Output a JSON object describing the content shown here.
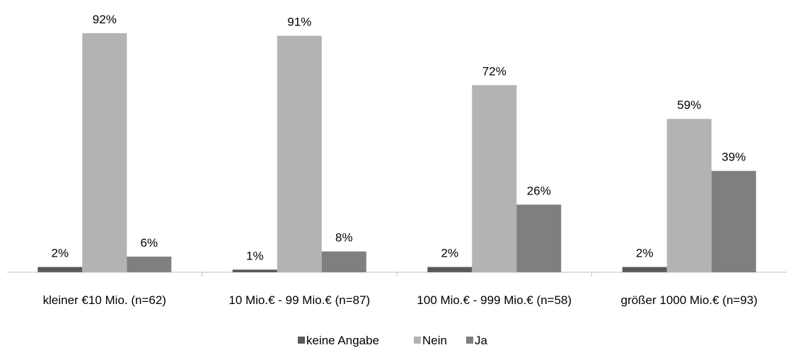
{
  "chart_data": {
    "type": "bar",
    "categories": [
      "kleiner €10 Mio. (n=62)",
      "10 Mio.€  - 99 Mio.€ (n=87)",
      "100 Mio.€ - 999 Mio.€ (n=58)",
      "größer 1000 Mio.€ (n=93)"
    ],
    "series": [
      {
        "name": "keine Angabe",
        "color": "#595959",
        "values": [
          2,
          1,
          2,
          2
        ],
        "labels": [
          "2%",
          "1%",
          "2%",
          "2%"
        ]
      },
      {
        "name": "Nein",
        "color": "#b3b3b3",
        "values": [
          92,
          91,
          72,
          59
        ],
        "labels": [
          "92%",
          "91%",
          "72%",
          "59%"
        ]
      },
      {
        "name": "Ja",
        "color": "#7f7f7f",
        "values": [
          6,
          8,
          26,
          39
        ],
        "labels": [
          "6%",
          "8%",
          "26%",
          "39%"
        ]
      }
    ],
    "ylim": [
      0,
      100
    ],
    "grid": false,
    "legend_position": "bottom"
  }
}
